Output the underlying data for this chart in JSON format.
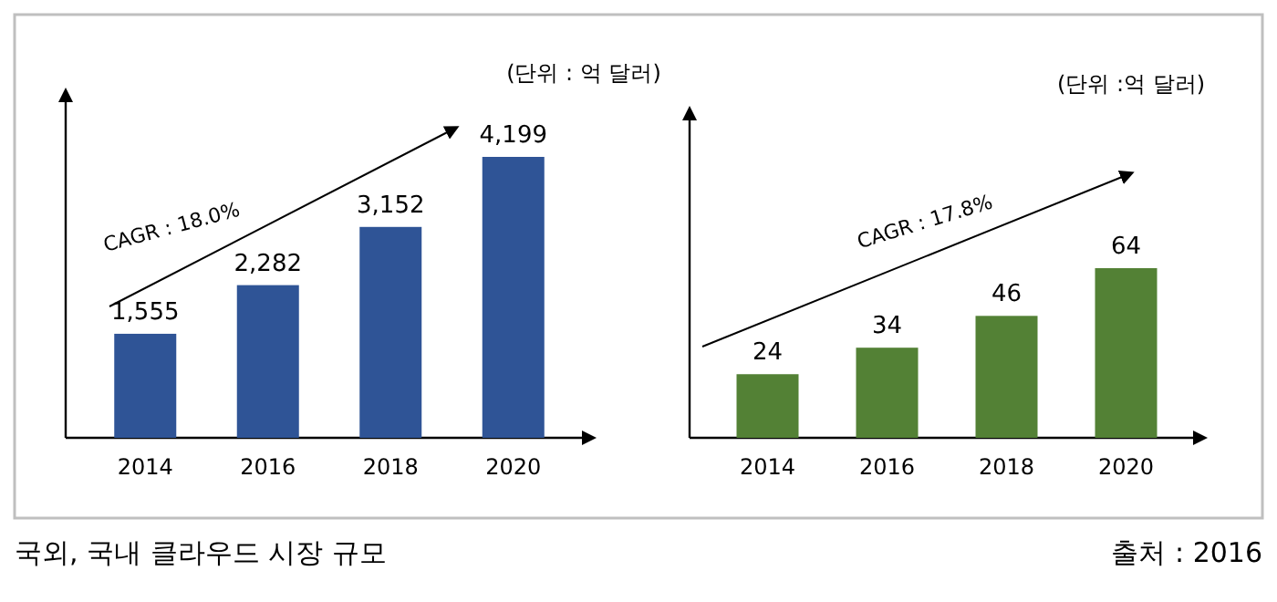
{
  "chart_data": [
    {
      "type": "bar",
      "categories": [
        "2014",
        "2016",
        "2018",
        "2020"
      ],
      "values": [
        1555,
        2282,
        3152,
        4199
      ],
      "color": "#2f5496",
      "data_labels": true,
      "value_labels": [
        "1,555",
        "2,282",
        "3,152",
        "4,199"
      ],
      "annotations": [
        "CAGR : 18.0%",
        "(단위 : 억 달러)",
        "국외, 국내 클라우드 시장 규모"
      ]
    },
    {
      "type": "bar",
      "categories": [
        "2014",
        "2016",
        "2018",
        "2020"
      ],
      "values": [
        24,
        34,
        46,
        64
      ],
      "color": "#538135",
      "data_labels": true,
      "value_labels": [
        "24",
        "34",
        "46",
        "64"
      ],
      "annotations": [
        "CAGR : 17.8%",
        "(단위 :억 달러)",
        "출처 : 2016"
      ]
    }
  ]
}
